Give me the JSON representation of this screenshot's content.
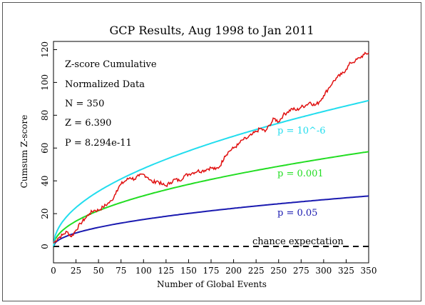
{
  "chart_data": {
    "type": "line",
    "title": "GCP Results, Aug 1998 to Jan 2011",
    "xlabel": "Number of Global Events",
    "ylabel": "Cumsum Z-score",
    "xlim": [
      0,
      350
    ],
    "ylim": [
      -10,
      125
    ],
    "x_ticks": [
      0,
      25,
      50,
      75,
      100,
      125,
      150,
      175,
      200,
      225,
      250,
      275,
      300,
      325,
      350
    ],
    "y_ticks": [
      0,
      20,
      40,
      60,
      80,
      100,
      120
    ],
    "grid": false,
    "stats": [
      "Z-score Cumulative",
      "Normalized Data",
      "N = 350",
      "Z = 6.390",
      "P = 8.294e-11"
    ],
    "series": [
      {
        "name": "Z-score Cumulative",
        "color": "#e01010",
        "x": [
          0,
          5,
          10,
          15,
          20,
          25,
          30,
          35,
          40,
          45,
          50,
          55,
          60,
          65,
          70,
          75,
          80,
          85,
          90,
          95,
          100,
          105,
          110,
          115,
          120,
          125,
          130,
          135,
          140,
          145,
          150,
          155,
          160,
          165,
          170,
          175,
          180,
          185,
          190,
          195,
          200,
          205,
          210,
          215,
          220,
          225,
          230,
          235,
          240,
          245,
          250,
          255,
          260,
          265,
          270,
          275,
          280,
          285,
          290,
          295,
          300,
          305,
          310,
          315,
          320,
          325,
          330,
          335,
          340,
          345,
          350
        ],
        "values": [
          2,
          5,
          7,
          9,
          6,
          10,
          14,
          17,
          20,
          22,
          22,
          24,
          26,
          28,
          34,
          38,
          40,
          42,
          41,
          43,
          44,
          42,
          39,
          40,
          38,
          37,
          39,
          41,
          40,
          43,
          44,
          45,
          46,
          46,
          47,
          48,
          47,
          49,
          55,
          58,
          60,
          62,
          65,
          66,
          68,
          70,
          72,
          70,
          74,
          78,
          76,
          80,
          82,
          84,
          83,
          85,
          86,
          88,
          86,
          88,
          92,
          96,
          100,
          103,
          105,
          108,
          112,
          113,
          115,
          117,
          118
        ]
      },
      {
        "name": "p = 10^-6",
        "color": "#22ddee",
        "k": 4.753
      },
      {
        "name": "p = 0.001",
        "color": "#22dd22",
        "k": 3.09
      },
      {
        "name": "p = 0.05",
        "color": "#1a1ab0",
        "k": 1.645
      },
      {
        "name": "chance expectation",
        "color": "#000000",
        "values_const": 0
      }
    ],
    "annotations": [
      {
        "text": "p = 10^-6",
        "color": "#22ddee"
      },
      {
        "text": "p = 0.001",
        "color": "#22dd22"
      },
      {
        "text": "p = 0.05",
        "color": "#1a1ab0"
      },
      {
        "text": "chance expectation",
        "color": "#000000"
      }
    ]
  }
}
